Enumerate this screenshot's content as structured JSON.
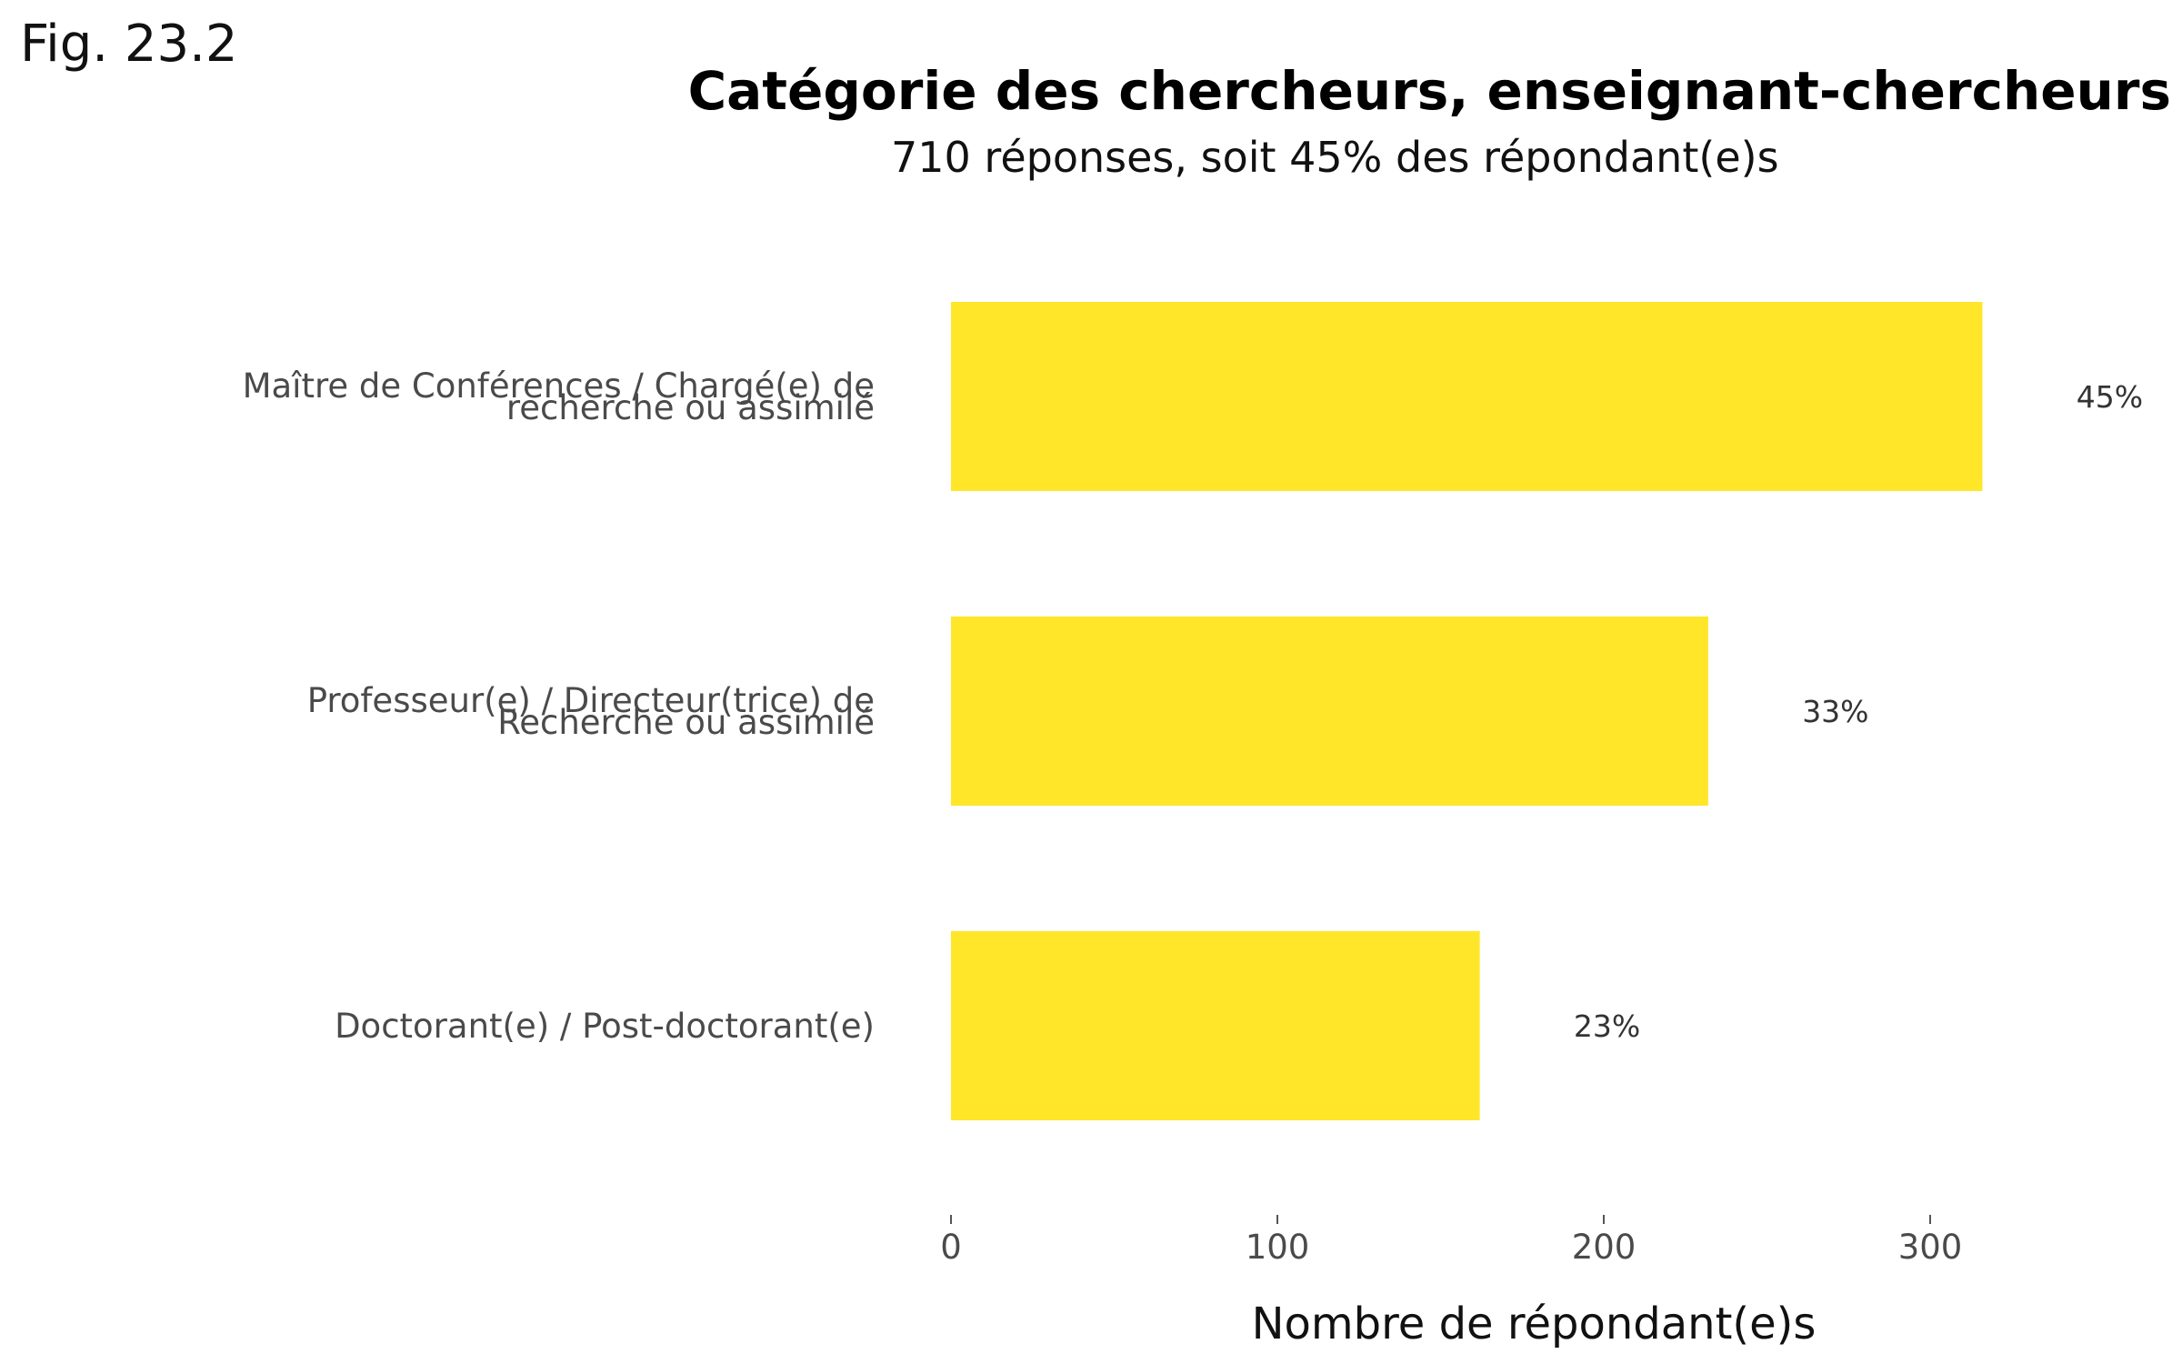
{
  "figure_label": "Fig. 23.2",
  "chart_data": {
    "type": "bar",
    "orientation": "horizontal",
    "title": "Catégorie des chercheurs, enseignant-chercheurs",
    "subtitle": "710 réponses, soit 45% des répondant(e)s",
    "xlabel": "Nombre de répondant(e)s",
    "ylabel": "",
    "categories": [
      [
        "Maître de Conférences / Chargé(e) de",
        "recherche ou assimilé"
      ],
      [
        "Professeur(e) / Directeur(trice) de",
        "Recherche ou assimilé"
      ],
      [
        "Doctorant(e) / Post-doctorant(e)"
      ]
    ],
    "values": [
      316,
      232,
      162
    ],
    "data_labels": [
      "45%",
      "33%",
      "23%"
    ],
    "xticks": [
      0,
      100,
      200,
      300
    ],
    "xlim": [
      0,
      370
    ],
    "bar_color": "#FFE629",
    "grid": false
  }
}
